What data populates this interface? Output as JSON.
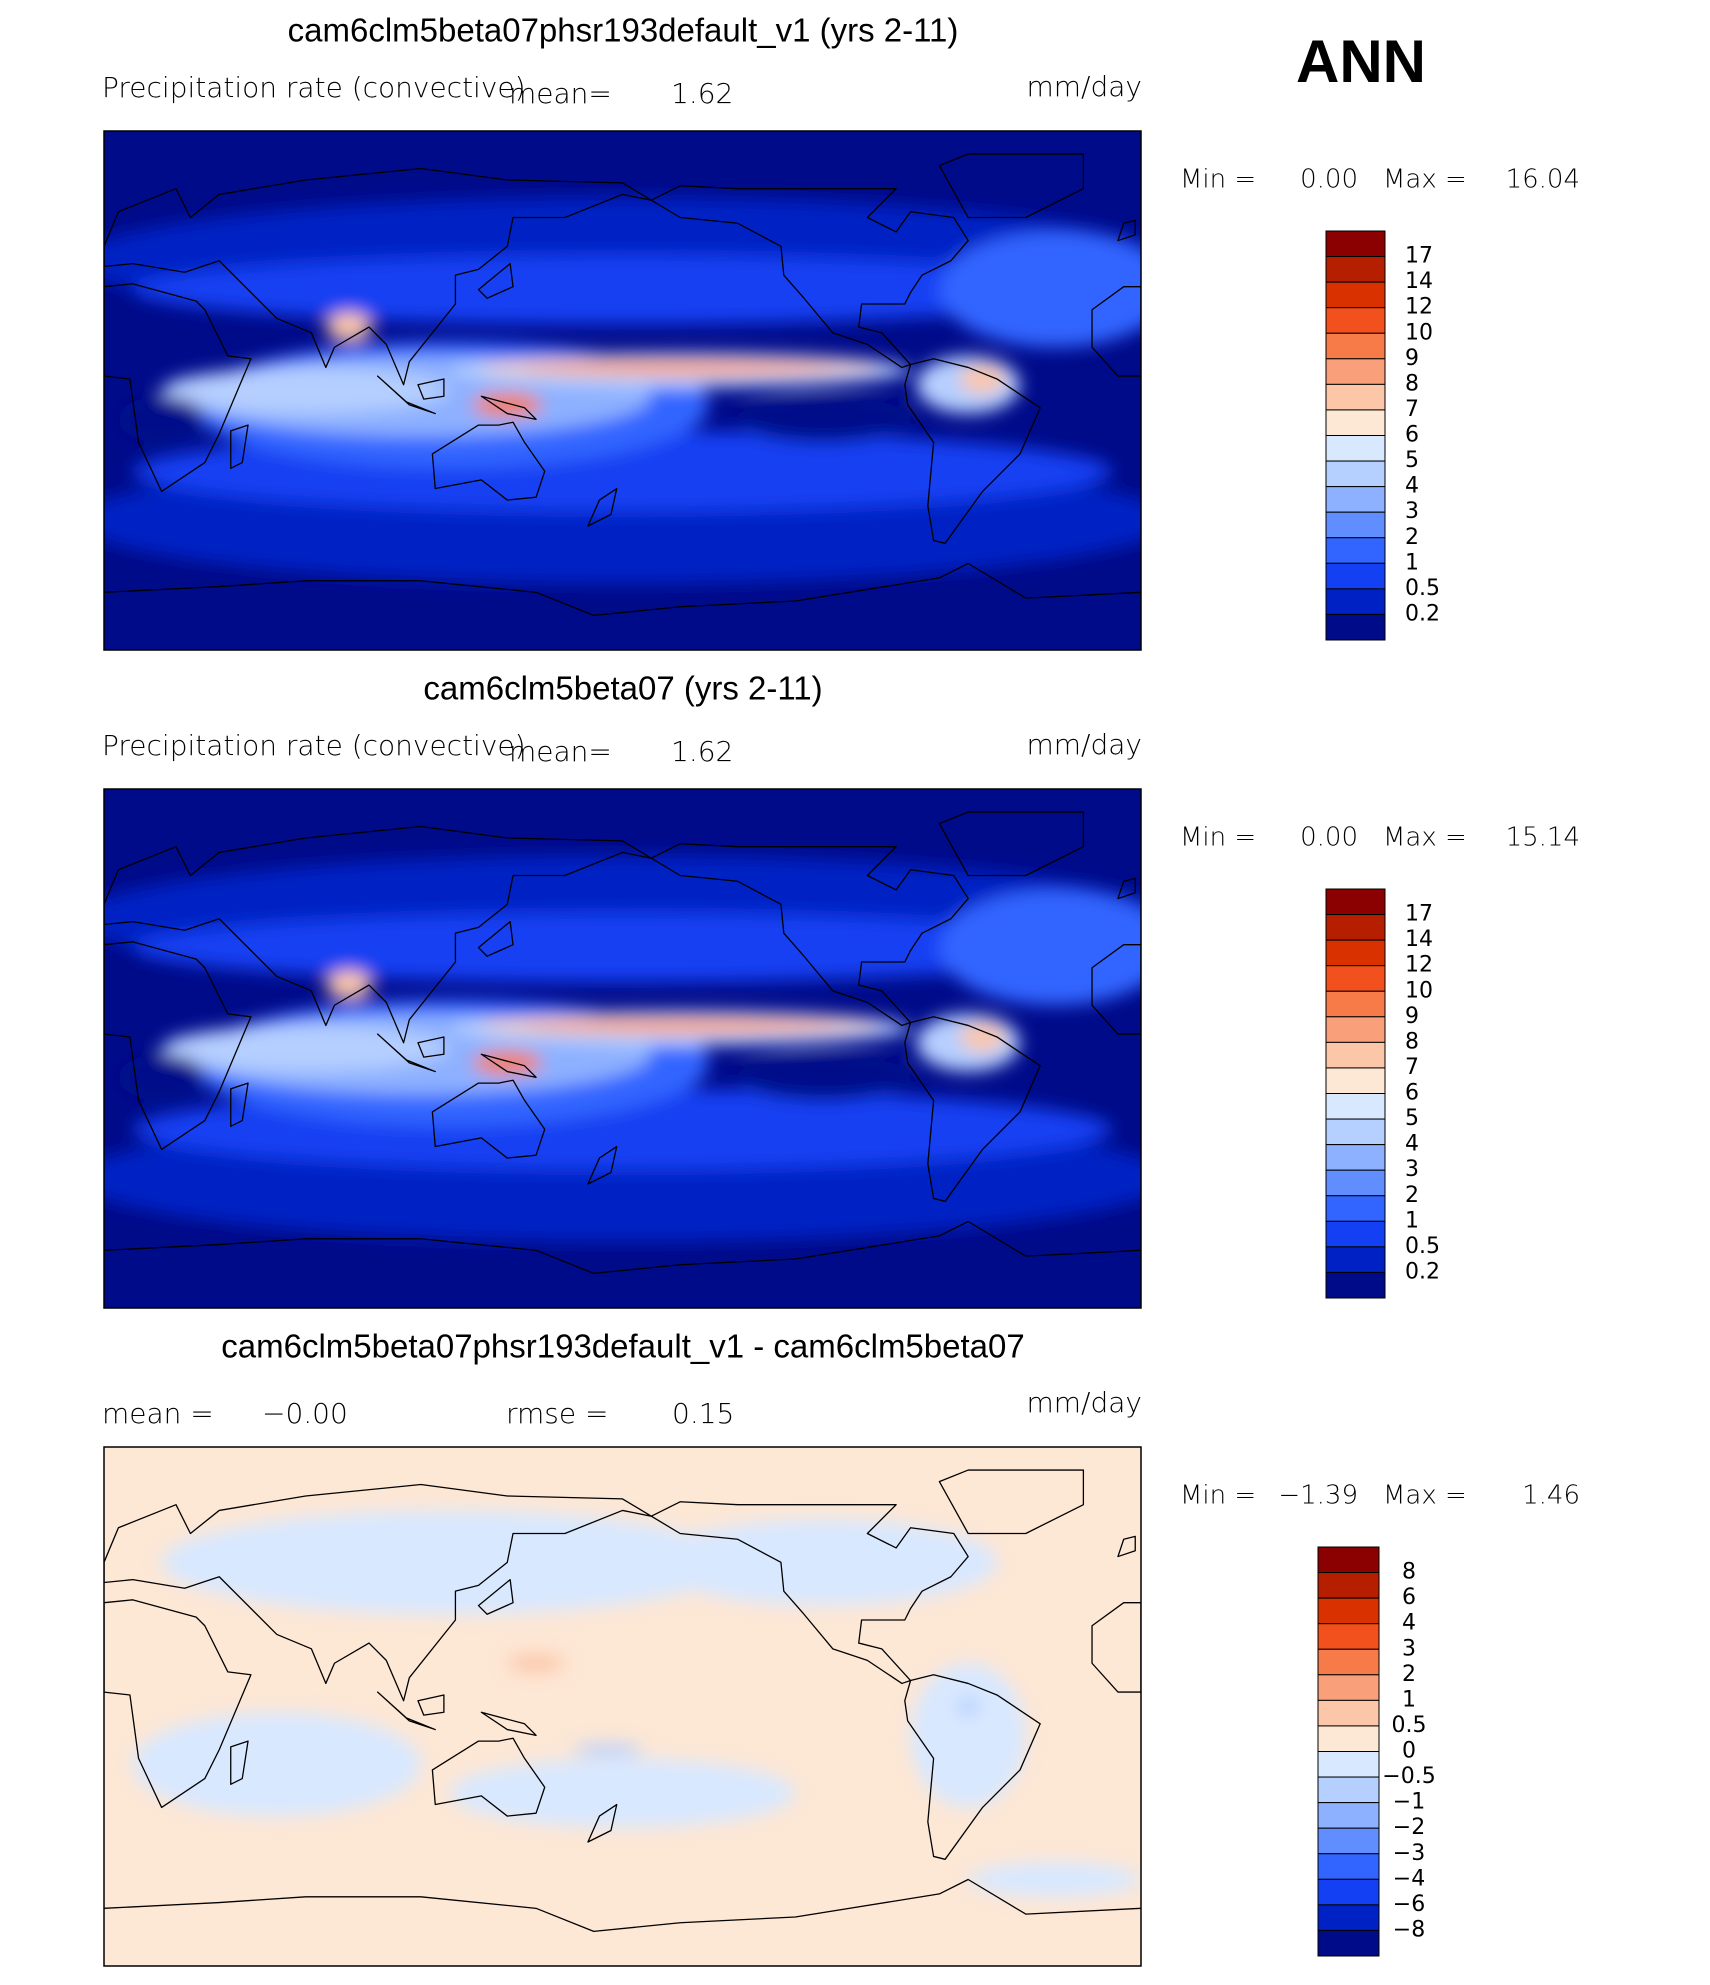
{
  "header": {
    "season": "ANN"
  },
  "panels": [
    {
      "title": "cam6clm5beta07phsr193default_v1 (yrs 2-11)",
      "variable": "Precipitation rate (convective)",
      "mean_label": "mean=",
      "mean": "1.62",
      "units": "mm/day",
      "min_label": "Min =",
      "min": "0.00",
      "max_label": "Max =",
      "max": "16.04",
      "colorbar": {
        "labels": [
          "17",
          "14",
          "12",
          "10",
          "9",
          "8",
          "7",
          "6",
          "5",
          "4",
          "3",
          "2",
          "1",
          "0.5",
          "0.2"
        ],
        "colors": [
          "#8b0000",
          "#b51f00",
          "#d93200",
          "#f2501c",
          "#f77b48",
          "#f9a07a",
          "#fcc6a8",
          "#fde7d5",
          "#d8e8ff",
          "#b5cfff",
          "#8db0ff",
          "#608eff",
          "#3265ff",
          "#1240f2",
          "#0021c4",
          "#000b8a"
        ]
      }
    },
    {
      "title": "cam6clm5beta07 (yrs 2-11)",
      "variable": "Precipitation rate (convective)",
      "mean_label": "mean=",
      "mean": "1.62",
      "units": "mm/day",
      "min_label": "Min =",
      "min": "0.00",
      "max_label": "Max =",
      "max": "15.14",
      "colorbar": {
        "labels": [
          "17",
          "14",
          "12",
          "10",
          "9",
          "8",
          "7",
          "6",
          "5",
          "4",
          "3",
          "2",
          "1",
          "0.5",
          "0.2"
        ],
        "colors": [
          "#8b0000",
          "#b51f00",
          "#d93200",
          "#f2501c",
          "#f77b48",
          "#f9a07a",
          "#fcc6a8",
          "#fde7d5",
          "#d8e8ff",
          "#b5cfff",
          "#8db0ff",
          "#608eff",
          "#3265ff",
          "#1240f2",
          "#0021c4",
          "#000b8a"
        ]
      }
    },
    {
      "title": "cam6clm5beta07phsr193default_v1 - cam6clm5beta07",
      "mean_label": "mean =",
      "mean": "−0.00",
      "rmse_label": "rmse =",
      "rmse": "0.15",
      "units": "mm/day",
      "min_label": "Min =",
      "min": "−1.39",
      "max_label": "Max =",
      "max": "1.46",
      "colorbar": {
        "labels": [
          "8",
          "6",
          "4",
          "3",
          "2",
          "1",
          "0.5",
          "0",
          "−0.5",
          "−1",
          "−2",
          "−3",
          "−4",
          "−6",
          "−8"
        ],
        "colors": [
          "#8b0000",
          "#b51f00",
          "#d93200",
          "#f2501c",
          "#f77b48",
          "#f9a07a",
          "#fcc6a8",
          "#fde7d5",
          "#d8e8ff",
          "#b5cfff",
          "#8db0ff",
          "#608eff",
          "#3265ff",
          "#1240f2",
          "#0021c4",
          "#000b8a"
        ]
      }
    }
  ]
}
